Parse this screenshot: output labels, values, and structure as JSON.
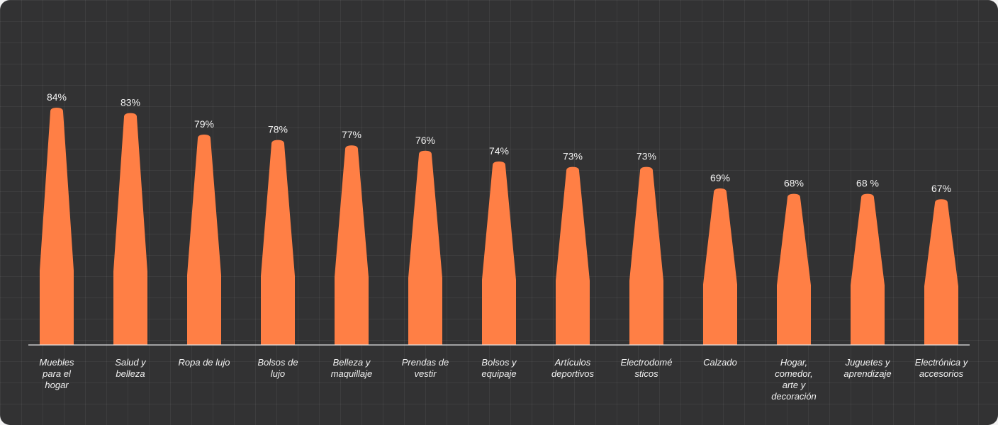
{
  "chart_data": {
    "type": "bar",
    "categories": [
      [
        "Muebles",
        "para el",
        "hogar"
      ],
      [
        "Salud y",
        "belleza"
      ],
      [
        "Ropa de lujo"
      ],
      [
        "Bolsos de",
        "lujo"
      ],
      [
        "Belleza y",
        "maquillaje"
      ],
      [
        "Prendas de",
        "vestir"
      ],
      [
        "Bolsos y",
        "equipaje"
      ],
      [
        "Artículos",
        "deportivos"
      ],
      [
        "Electrodomé",
        "sticos"
      ],
      [
        "Calzado"
      ],
      [
        "Hogar,",
        "comedor,",
        "arte y",
        "decoración"
      ],
      [
        "Juguetes y",
        "aprendizaje"
      ],
      [
        "Electrónica y",
        "accesorios"
      ]
    ],
    "values": [
      84,
      83,
      79,
      78,
      77,
      76,
      74,
      73,
      73,
      69,
      68,
      68,
      67
    ],
    "value_labels": [
      "84%",
      "83%",
      "79%",
      "78%",
      "77%",
      "76%",
      "74%",
      "73%",
      "73%",
      "69%",
      "68%",
      "68 %",
      "67%"
    ],
    "bar_color": "#ff7f45",
    "background_color": "#323233",
    "grid": true
  }
}
